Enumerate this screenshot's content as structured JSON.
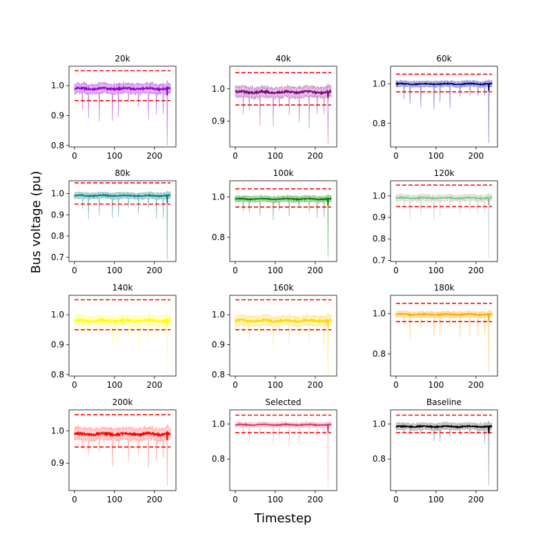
{
  "figure": {
    "xlabel": "Timestep",
    "ylabel": "Bus voltage (pu)"
  },
  "chart_data": [
    {
      "type": "line",
      "title": "20k",
      "color": "#9400d3",
      "band_color": "#c77de6",
      "xlim": [
        0,
        240
      ],
      "ylim": [
        0.795,
        1.065
      ],
      "yticks": [
        "0.8",
        "0.9",
        "1.0"
      ],
      "yticks_values": [
        0.8,
        0.9,
        1.0
      ],
      "xticks": [
        "0",
        "100",
        "200"
      ],
      "xticks_values": [
        0,
        100,
        200
      ],
      "limits": [
        0.95,
        1.05
      ],
      "mean_level": 0.99,
      "band": [
        0.975,
        1.01
      ],
      "min_dip": 0.8
    },
    {
      "type": "line",
      "title": "40k",
      "color": "#800080",
      "band_color": "#c48ec4",
      "xlim": [
        0,
        240
      ],
      "ylim": [
        0.82,
        1.07
      ],
      "yticks": [
        "0.9",
        "1.0"
      ],
      "yticks_values": [
        0.9,
        1.0
      ],
      "xticks": [
        "0",
        "100",
        "200"
      ],
      "xticks_values": [
        0,
        100,
        200
      ],
      "limits": [
        0.95,
        1.05
      ],
      "mean_level": 0.99,
      "band": [
        0.975,
        1.01
      ],
      "min_dip": 0.83
    },
    {
      "type": "line",
      "title": "60k",
      "color": "#00008b",
      "band_color": "#8a8ac8",
      "xlim": [
        0,
        240
      ],
      "ylim": [
        0.68,
        1.09
      ],
      "yticks": [
        "0.8",
        "1.0"
      ],
      "yticks_values": [
        0.8,
        1.0
      ],
      "xticks": [
        "0",
        "100",
        "200"
      ],
      "xticks_values": [
        0,
        100,
        200
      ],
      "limits": [
        0.96,
        1.05
      ],
      "mean_level": 1.0,
      "band": [
        0.985,
        1.015
      ],
      "min_dip": 0.7
    },
    {
      "type": "line",
      "title": "80k",
      "color": "#008080",
      "band_color": "#7fbfbf",
      "xlim": [
        0,
        240
      ],
      "ylim": [
        0.68,
        1.06
      ],
      "yticks": [
        "0.7",
        "0.8",
        "0.9",
        "1.0"
      ],
      "yticks_values": [
        0.7,
        0.8,
        0.9,
        1.0
      ],
      "xticks": [
        "0",
        "100",
        "200"
      ],
      "xticks_values": [
        0,
        100,
        200
      ],
      "limits": [
        0.95,
        1.05
      ],
      "mean_level": 0.99,
      "band": [
        0.975,
        1.005
      ],
      "min_dip": 0.69
    },
    {
      "type": "line",
      "title": "100k",
      "color": "#008000",
      "band_color": "#7fc07f",
      "xlim": [
        0,
        240
      ],
      "ylim": [
        0.68,
        1.08
      ],
      "yticks": [
        "0.8",
        "1.0"
      ],
      "yticks_values": [
        0.8,
        1.0
      ],
      "xticks": [
        "0",
        "100",
        "200"
      ],
      "xticks_values": [
        0,
        100,
        200
      ],
      "limits": [
        0.95,
        1.04
      ],
      "mean_level": 0.99,
      "band": [
        0.975,
        1.005
      ],
      "min_dip": 0.7
    },
    {
      "type": "line",
      "title": "120k",
      "color": "#8fbc8f",
      "band_color": "#c6ddc6",
      "xlim": [
        0,
        240
      ],
      "ylim": [
        0.695,
        1.07
      ],
      "yticks": [
        "0.7",
        "0.8",
        "0.9",
        "1.0"
      ],
      "yticks_values": [
        0.7,
        0.8,
        0.9,
        1.0
      ],
      "xticks": [
        "0",
        "100",
        "200"
      ],
      "xticks_values": [
        0,
        100,
        200
      ],
      "limits": [
        0.95,
        1.05
      ],
      "mean_level": 0.99,
      "band": [
        0.975,
        1.005
      ],
      "min_dip": 0.71
    },
    {
      "type": "line",
      "title": "140k",
      "color": "#ffff00",
      "band_color": "#ffff99",
      "xlim": [
        0,
        240
      ],
      "ylim": [
        0.795,
        1.065
      ],
      "yticks": [
        "0.8",
        "0.9",
        "1.0"
      ],
      "yticks_values": [
        0.8,
        0.9,
        1.0
      ],
      "xticks": [
        "0",
        "100",
        "200"
      ],
      "xticks_values": [
        0,
        100,
        200
      ],
      "limits": [
        0.95,
        1.05
      ],
      "mean_level": 0.98,
      "band": [
        0.965,
        1.0
      ],
      "min_dip": 0.8
    },
    {
      "type": "line",
      "title": "160k",
      "color": "#ffd700",
      "band_color": "#ffe98a",
      "xlim": [
        0,
        240
      ],
      "ylim": [
        0.795,
        1.065
      ],
      "yticks": [
        "0.8",
        "0.9",
        "1.0"
      ],
      "yticks_values": [
        0.8,
        0.9,
        1.0
      ],
      "xticks": [
        "0",
        "100",
        "200"
      ],
      "xticks_values": [
        0,
        100,
        200
      ],
      "limits": [
        0.95,
        1.05
      ],
      "mean_level": 0.98,
      "band": [
        0.965,
        1.0
      ],
      "min_dip": 0.8
    },
    {
      "type": "line",
      "title": "180k",
      "color": "#ffa500",
      "band_color": "#ffd28a",
      "xlim": [
        0,
        240
      ],
      "ylim": [
        0.69,
        1.09
      ],
      "yticks": [
        "0.8",
        "1.0"
      ],
      "yticks_values": [
        0.8,
        1.0
      ],
      "xticks": [
        "0",
        "100",
        "200"
      ],
      "xticks_values": [
        0,
        100,
        200
      ],
      "limits": [
        0.96,
        1.05
      ],
      "mean_level": 0.995,
      "band": [
        0.98,
        1.01
      ],
      "min_dip": 0.71
    },
    {
      "type": "line",
      "title": "200k",
      "color": "#ff0000",
      "band_color": "#ffaaaa",
      "xlim": [
        0,
        240
      ],
      "ylim": [
        0.815,
        1.065
      ],
      "yticks": [
        "0.9",
        "1.0"
      ],
      "yticks_values": [
        0.9,
        1.0
      ],
      "xticks": [
        "0",
        "100",
        "200"
      ],
      "xticks_values": [
        0,
        100,
        200
      ],
      "limits": [
        0.95,
        1.05
      ],
      "mean_level": 0.99,
      "band": [
        0.97,
        1.01
      ],
      "min_dip": 0.83
    },
    {
      "type": "line",
      "title": "Selected",
      "color": "#d6336c",
      "band_color": "#ffc0cb",
      "xlim": [
        0,
        240
      ],
      "ylim": [
        0.62,
        1.08
      ],
      "yticks": [
        "0.8",
        "1.0"
      ],
      "yticks_values": [
        0.8,
        1.0
      ],
      "xticks": [
        "0",
        "100",
        "200"
      ],
      "xticks_values": [
        0,
        100,
        200
      ],
      "limits": [
        0.95,
        1.05
      ],
      "mean_level": 0.995,
      "band": [
        0.97,
        1.0
      ],
      "min_dip": 0.64
    },
    {
      "type": "line",
      "title": "Baseline",
      "color": "#000000",
      "band_color": "#aaaaaa",
      "xlim": [
        0,
        240
      ],
      "ylim": [
        0.62,
        1.08
      ],
      "yticks": [
        "0.8",
        "1.0"
      ],
      "yticks_values": [
        0.8,
        1.0
      ],
      "xticks": [
        "0",
        "100",
        "200"
      ],
      "xticks_values": [
        0,
        100,
        200
      ],
      "limits": [
        0.95,
        1.05
      ],
      "mean_level": 0.985,
      "band": [
        0.96,
        1.0
      ],
      "min_dip": 0.65
    }
  ]
}
